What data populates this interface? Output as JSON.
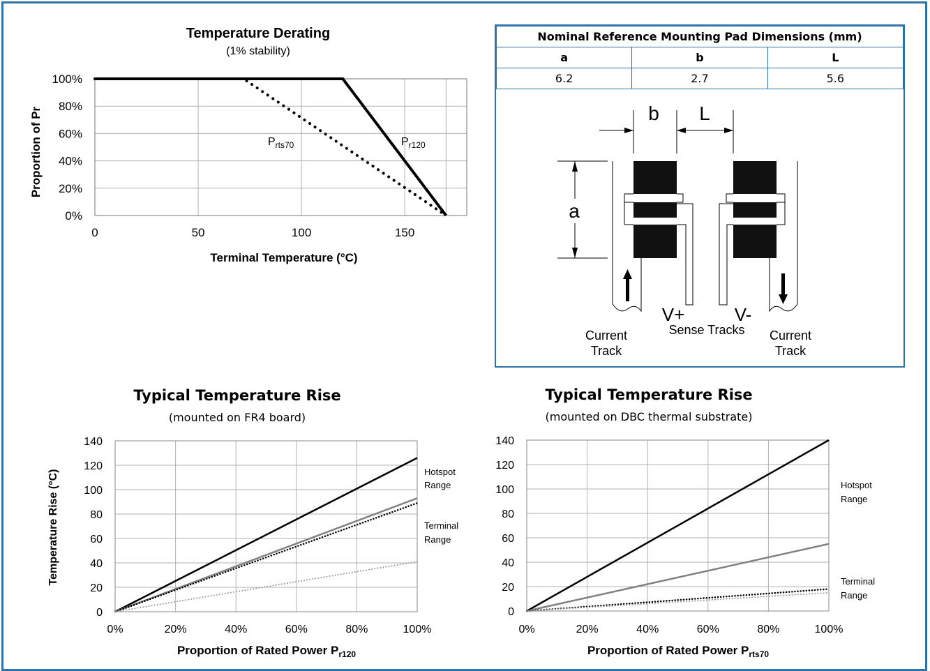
{
  "chart_data": [
    {
      "type": "line",
      "title": "Temperature Derating",
      "subtitle": "(1% stability)",
      "xlabel": "Terminal Temperature (°C)",
      "ylabel": "Proportion of Pr",
      "xlim": [
        0,
        180
      ],
      "ylim": [
        0,
        100
      ],
      "x_ticks": [
        "0",
        "50",
        "100",
        "150"
      ],
      "y_ticks": [
        "0%",
        "20%",
        "40%",
        "60%",
        "80%",
        "100%"
      ],
      "grid": true,
      "series": [
        {
          "name": "Pr120",
          "label_main": "P",
          "label_sub": "r120",
          "style": "solid",
          "x": [
            0,
            120,
            170
          ],
          "y": [
            100,
            100,
            0
          ]
        },
        {
          "name": "Prts70",
          "label_main": "P",
          "label_sub": "rts70",
          "style": "dotted",
          "x": [
            0,
            72,
            170
          ],
          "y": [
            100,
            100,
            0
          ]
        }
      ]
    },
    {
      "type": "line",
      "title": "Typical Temperature Rise",
      "subtitle": "(mounted on FR4 board)",
      "xlabel_main": "Proportion of Rated Power P",
      "xlabel_sub": "r120",
      "ylabel": "Temperature Rise (°C)",
      "xlim": [
        0,
        100
      ],
      "ylim": [
        0,
        140
      ],
      "x_ticks": [
        "0%",
        "20%",
        "40%",
        "60%",
        "80%",
        "100%"
      ],
      "y_ticks": [
        "0",
        "20",
        "40",
        "60",
        "80",
        "100",
        "120",
        "140"
      ],
      "grid": true,
      "annotations": [
        {
          "line1": "Hotspot",
          "line2": "Range"
        },
        {
          "line1": "Terminal",
          "line2": "Range"
        }
      ],
      "series": [
        {
          "style": "solid",
          "color": "#000000",
          "x": [
            0,
            100
          ],
          "y": [
            0,
            126
          ]
        },
        {
          "style": "solid",
          "color": "#808080",
          "x": [
            0,
            100
          ],
          "y": [
            0,
            93
          ]
        },
        {
          "style": "dotted",
          "color": "#000000",
          "x": [
            0,
            100
          ],
          "y": [
            0,
            89
          ]
        },
        {
          "style": "dotted",
          "color": "#999999",
          "x": [
            0,
            100
          ],
          "y": [
            0,
            41
          ]
        }
      ]
    },
    {
      "type": "line",
      "title": "Typical Temperature Rise",
      "subtitle": "(mounted on DBC thermal substrate)",
      "xlabel_main": "Proportion of Rated Power P",
      "xlabel_sub": "rts70",
      "ylabel": "",
      "xlim": [
        0,
        100
      ],
      "ylim": [
        0,
        140
      ],
      "x_ticks": [
        "0%",
        "20%",
        "40%",
        "60%",
        "80%",
        "100%"
      ],
      "y_ticks": [
        "0",
        "20",
        "40",
        "60",
        "80",
        "100",
        "120",
        "140"
      ],
      "grid": true,
      "annotations": [
        {
          "line1": "Hotspot",
          "line2": "Range"
        },
        {
          "line1": "Terminal",
          "line2": "Range"
        }
      ],
      "series": [
        {
          "style": "solid",
          "color": "#000000",
          "x": [
            0,
            100
          ],
          "y": [
            0,
            140
          ]
        },
        {
          "style": "solid",
          "color": "#808080",
          "x": [
            0,
            100
          ],
          "y": [
            0,
            55
          ]
        },
        {
          "style": "dotted",
          "color": "#000000",
          "x": [
            0,
            100
          ],
          "y": [
            0,
            18
          ]
        },
        {
          "style": "dotted",
          "color": "#999999",
          "x": [
            0,
            100
          ],
          "y": [
            0,
            15
          ]
        }
      ]
    }
  ],
  "pad_dimensions": {
    "title": "Nominal Reference Mounting Pad Dimensions (mm)",
    "headers": [
      "a",
      "b",
      "L"
    ],
    "values": [
      "6.2",
      "2.7",
      "5.6"
    ]
  },
  "pad_diagram": {
    "label_b": "b",
    "label_L": "L",
    "label_a": "a",
    "v_plus": "V+",
    "v_minus": "V-",
    "sense_tracks": "Sense Tracks",
    "current_track_left_1": "Current",
    "current_track_left_2": "Track",
    "current_track_right_1": "Current",
    "current_track_right_2": "Track"
  }
}
